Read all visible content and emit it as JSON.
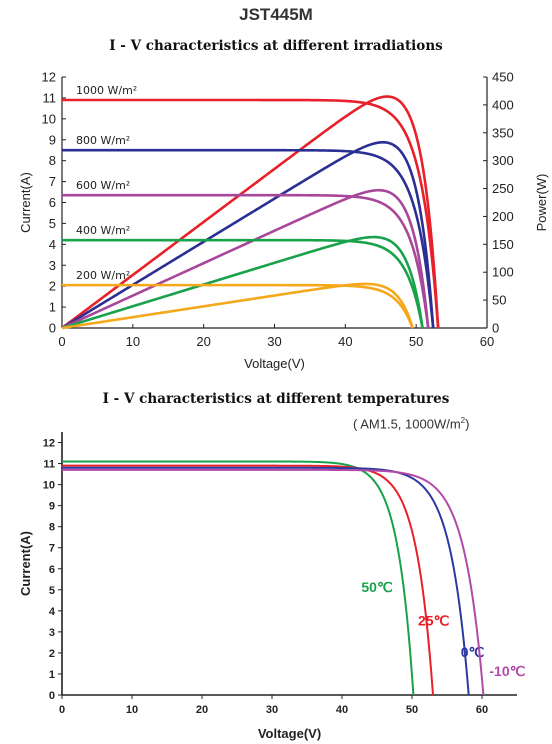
{
  "page_title": "JST445M",
  "chart_data": [
    {
      "type": "line",
      "title": "I - V  characteristics at different irradiations",
      "xlabel": "Voltage(V)",
      "ylabel": "Current(A)",
      "y2label": "Power(W)",
      "xlim": [
        0,
        60
      ],
      "ylim": [
        0,
        12
      ],
      "y2lim": [
        0,
        450
      ],
      "x_ticks": [
        0,
        10,
        20,
        30,
        40,
        50,
        60
      ],
      "y_ticks": [
        0,
        1,
        2,
        3,
        4,
        5,
        6,
        7,
        8,
        9,
        10,
        11,
        12
      ],
      "y2_ticks": [
        0,
        50,
        100,
        150,
        200,
        250,
        300,
        350,
        400,
        450
      ],
      "grid": false,
      "series": [
        {
          "name": "1000 W/m²",
          "color": "#e8202a",
          "isc": 10.9,
          "voc": 53.1,
          "vmp": 43.0,
          "pmax": 415
        },
        {
          "name": "800 W/m²",
          "color": "#2b2f93",
          "isc": 8.5,
          "voc": 52.4,
          "vmp": 42.8,
          "pmax": 333
        },
        {
          "name": "600 W/m²",
          "color": "#a8479a",
          "isc": 6.35,
          "voc": 51.7,
          "vmp": 42.5,
          "pmax": 247
        },
        {
          "name": "400 W/m²",
          "color": "#18a24a",
          "isc": 4.2,
          "voc": 50.9,
          "vmp": 42.2,
          "pmax": 163
        },
        {
          "name": "200 W/m²",
          "color": "#f6a81c",
          "isc": 2.05,
          "voc": 49.5,
          "vmp": 42.0,
          "pmax": 79
        }
      ]
    },
    {
      "type": "line",
      "title": "I  -  V  characteristics at different temperatures",
      "conditions": "( AM1.5,  1000W/m",
      "conditions_sup": "2",
      "conditions_end": ")",
      "xlabel": "Voltage(V)",
      "ylabel": "Current(A)",
      "xlim": [
        0,
        65
      ],
      "ylim": [
        0,
        12.5
      ],
      "x_ticks": [
        0,
        10,
        20,
        30,
        40,
        50,
        60
      ],
      "y_ticks": [
        0,
        1,
        2,
        3,
        4,
        5,
        6,
        7,
        8,
        9,
        10,
        11,
        12
      ],
      "grid": false,
      "series": [
        {
          "name": "50℃",
          "color": "#18a24a",
          "isc": 11.1,
          "voc": 50.2,
          "knee": 44.0
        },
        {
          "name": "25℃",
          "color": "#e8202a",
          "isc": 10.9,
          "voc": 53.0,
          "knee": 45.5
        },
        {
          "name": "0℃",
          "color": "#2b3aa0",
          "isc": 10.8,
          "voc": 58.1,
          "knee": 49.0
        },
        {
          "name": "-10℃",
          "color": "#b24aa8",
          "isc": 10.7,
          "voc": 60.2,
          "knee": 50.5
        }
      ]
    }
  ]
}
